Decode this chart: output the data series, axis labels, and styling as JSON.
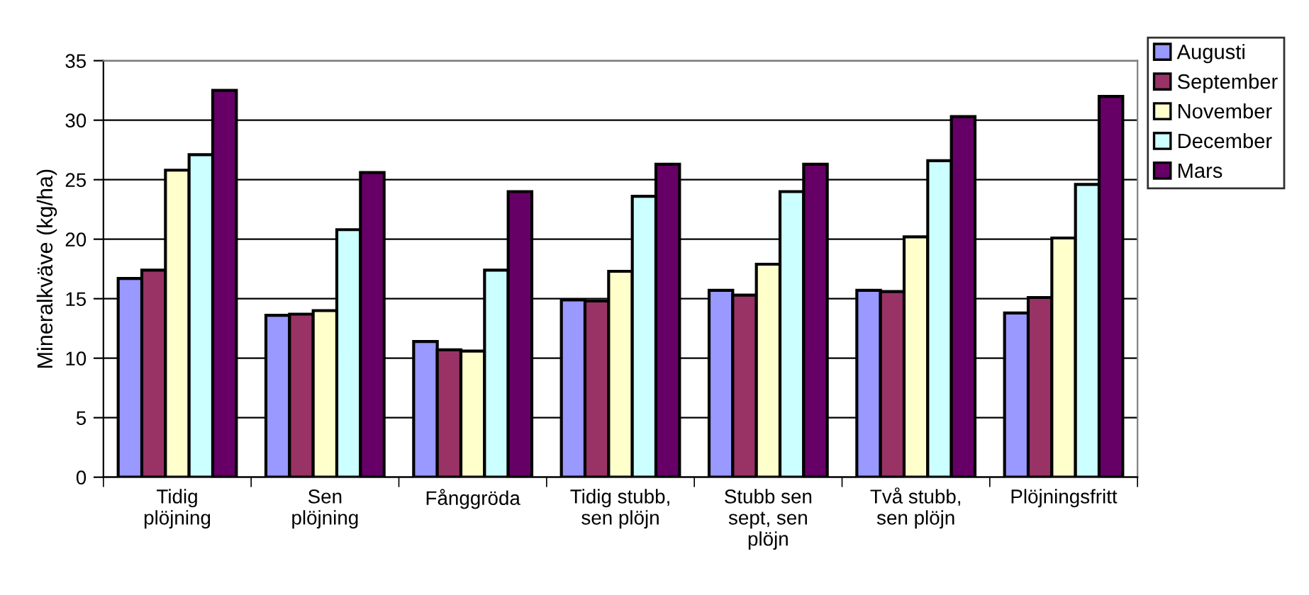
{
  "chart_data": {
    "type": "bar",
    "ylabel": "Mineralkväve (kg/ha)",
    "categories": [
      "Tidig\nplöjning",
      "Sen\nplöjning",
      "Fånggröda",
      "Tidig stubb,\nsen plöjn",
      "Stubb sen\nsept, sen\nplöjn",
      "Två stubb,\nsen plöjn",
      "Plöjningsfritt"
    ],
    "series": [
      {
        "name": "Augusti",
        "color": "#9999ff",
        "values": [
          16.7,
          13.6,
          11.4,
          14.9,
          15.7,
          15.7,
          13.8
        ]
      },
      {
        "name": "September",
        "color": "#993366",
        "values": [
          17.4,
          13.7,
          10.7,
          14.8,
          15.3,
          15.6,
          15.1
        ]
      },
      {
        "name": "November",
        "color": "#ffffcc",
        "values": [
          25.8,
          14.0,
          10.6,
          17.3,
          17.9,
          20.2,
          20.1
        ]
      },
      {
        "name": "December",
        "color": "#ccffff",
        "values": [
          27.1,
          20.8,
          17.4,
          23.6,
          24.0,
          26.6,
          24.6
        ]
      },
      {
        "name": "Mars",
        "color": "#660066",
        "values": [
          32.5,
          25.6,
          24.0,
          26.3,
          26.3,
          30.3,
          32.0
        ]
      }
    ],
    "ylim": [
      0,
      35
    ],
    "yticks": [
      0,
      5,
      10,
      15,
      20,
      25,
      30,
      35
    ],
    "grid": "y",
    "legend": "top right"
  }
}
